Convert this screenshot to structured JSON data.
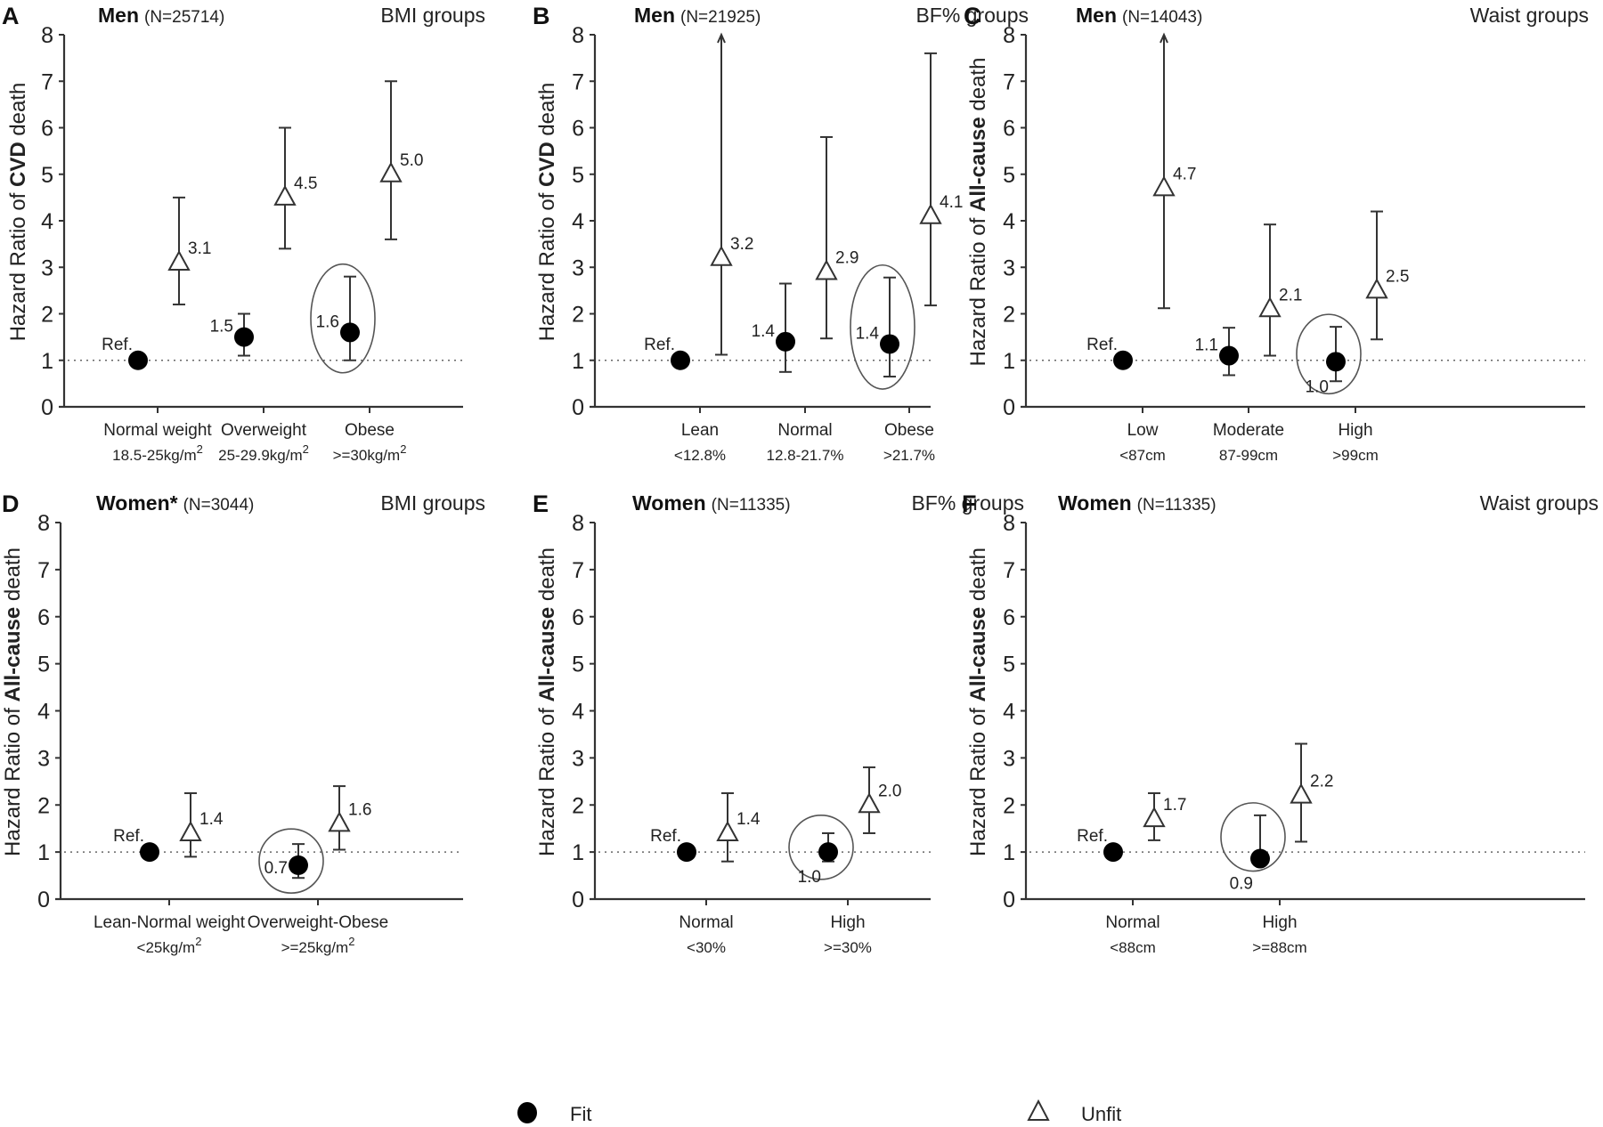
{
  "chart_data": [
    {
      "type": "scatter",
      "panel": "A",
      "title_sex": "Men",
      "title_n": "(N=25714)",
      "title_group": "BMI groups",
      "ylabel_prefix": "Hazard Ratio of ",
      "ylabel_bold": "CVD",
      "ylabel_suffix": " death",
      "ylim": [
        0,
        8
      ],
      "yticks": [
        0,
        1,
        2,
        3,
        4,
        5,
        6,
        7,
        8
      ],
      "reference_line": 1,
      "categories": [
        {
          "label": "Normal weight",
          "sub": "18.5-25kg/m",
          "sup": "2"
        },
        {
          "label": "Overweight",
          "sub": "25-29.9kg/m",
          "sup": "2"
        },
        {
          "label": "Obese",
          "sub": ">=30kg/m",
          "sup": "2"
        }
      ],
      "series": [
        {
          "name": "Fit",
          "marker": "circle",
          "points": [
            {
              "cat": 0,
              "value": 1.0,
              "lo": null,
              "hi": null,
              "label": "Ref."
            },
            {
              "cat": 1,
              "value": 1.5,
              "lo": 1.1,
              "hi": 2.0,
              "label": "1.5"
            },
            {
              "cat": 2,
              "value": 1.6,
              "lo": 1.0,
              "hi": 2.8,
              "label": "1.6",
              "highlight": true
            }
          ]
        },
        {
          "name": "Unfit",
          "marker": "triangle",
          "points": [
            {
              "cat": 0,
              "value": 3.1,
              "lo": 2.2,
              "hi": 4.5,
              "label": "3.1"
            },
            {
              "cat": 1,
              "value": 4.5,
              "lo": 3.4,
              "hi": 6.0,
              "label": "4.5"
            },
            {
              "cat": 2,
              "value": 5.0,
              "lo": 3.6,
              "hi": 7.0,
              "label": "5.0"
            }
          ]
        }
      ]
    },
    {
      "type": "scatter",
      "panel": "B",
      "title_sex": "Men",
      "title_n": "(N=21925)",
      "title_group": "BF% groups",
      "ylabel_prefix": "Hazard Ratio of ",
      "ylabel_bold": "CVD",
      "ylabel_suffix": " death",
      "ylim": [
        0,
        8
      ],
      "yticks": [
        0,
        1,
        2,
        3,
        4,
        5,
        6,
        7,
        8
      ],
      "reference_line": 1,
      "categories": [
        {
          "label": "Lean",
          "sub": "<12.8%",
          "sup": ""
        },
        {
          "label": "Normal",
          "sub": "12.8-21.7%",
          "sup": ""
        },
        {
          "label": "Obese",
          "sub": ">21.7%",
          "sup": ""
        }
      ],
      "series": [
        {
          "name": "Fit",
          "marker": "circle",
          "points": [
            {
              "cat": 0,
              "value": 1.0,
              "lo": null,
              "hi": null,
              "label": "Ref."
            },
            {
              "cat": 1,
              "value": 1.4,
              "lo": 0.75,
              "hi": 2.65,
              "label": "1.4"
            },
            {
              "cat": 2,
              "value": 1.35,
              "lo": 0.65,
              "hi": 2.78,
              "label": "1.4",
              "highlight": true
            }
          ]
        },
        {
          "name": "Unfit",
          "marker": "triangle",
          "points": [
            {
              "cat": 0,
              "value": 3.2,
              "lo": 1.12,
              "hi": 8.0,
              "label": "3.2",
              "arrow": true
            },
            {
              "cat": 1,
              "value": 2.9,
              "lo": 1.47,
              "hi": 5.8,
              "label": "2.9"
            },
            {
              "cat": 2,
              "value": 4.1,
              "lo": 2.18,
              "hi": 7.6,
              "label": "4.1"
            }
          ]
        }
      ]
    },
    {
      "type": "scatter",
      "panel": "C",
      "title_sex": "Men",
      "title_n": "(N=14043)",
      "title_group": "Waist groups",
      "ylabel_prefix": "Hazard Ratio of ",
      "ylabel_bold": "All-cause",
      "ylabel_suffix": " death",
      "ylim": [
        0,
        8
      ],
      "yticks": [
        0,
        1,
        2,
        3,
        4,
        5,
        6,
        7,
        8
      ],
      "reference_line": 1,
      "categories": [
        {
          "label": "Low",
          "sub": "<87cm",
          "sup": ""
        },
        {
          "label": "Moderate",
          "sub": "87-99cm",
          "sup": ""
        },
        {
          "label": "High",
          "sub": ">99cm",
          "sup": ""
        }
      ],
      "series": [
        {
          "name": "Fit",
          "marker": "circle",
          "points": [
            {
              "cat": 0,
              "value": 1.0,
              "lo": null,
              "hi": null,
              "label": "Ref."
            },
            {
              "cat": 1,
              "value": 1.1,
              "lo": 0.68,
              "hi": 1.7,
              "label": "1.1"
            },
            {
              "cat": 2,
              "value": 0.97,
              "lo": 0.55,
              "hi": 1.72,
              "label": "1.0",
              "highlight": true
            }
          ]
        },
        {
          "name": "Unfit",
          "marker": "triangle",
          "points": [
            {
              "cat": 0,
              "value": 4.7,
              "lo": 2.12,
              "hi": 8.0,
              "label": "4.7",
              "arrow": true
            },
            {
              "cat": 1,
              "value": 2.1,
              "lo": 1.1,
              "hi": 3.92,
              "label": "2.1"
            },
            {
              "cat": 2,
              "value": 2.5,
              "lo": 1.45,
              "hi": 4.2,
              "label": "2.5"
            }
          ]
        }
      ]
    },
    {
      "type": "scatter",
      "panel": "D",
      "title_sex": "Women*",
      "title_n": "(N=3044)",
      "title_group": "BMI groups",
      "ylabel_prefix": "Hazard Ratio of ",
      "ylabel_bold": "All-cause",
      "ylabel_suffix": " death",
      "ylim": [
        0,
        8
      ],
      "yticks": [
        0,
        1,
        2,
        3,
        4,
        5,
        6,
        7,
        8
      ],
      "reference_line": 1,
      "categories": [
        {
          "label": "Lean-Normal weight",
          "sub": "<25kg/m",
          "sup": "2"
        },
        {
          "label": "Overweight-Obese",
          "sub": ">=25kg/m",
          "sup": "2"
        }
      ],
      "series": [
        {
          "name": "Fit",
          "marker": "circle",
          "points": [
            {
              "cat": 0,
              "value": 1.0,
              "lo": null,
              "hi": null,
              "label": "Ref."
            },
            {
              "cat": 1,
              "value": 0.72,
              "lo": 0.45,
              "hi": 1.17,
              "label": "0.7",
              "highlight": true
            }
          ]
        },
        {
          "name": "Unfit",
          "marker": "triangle",
          "points": [
            {
              "cat": 0,
              "value": 1.4,
              "lo": 0.9,
              "hi": 2.25,
              "label": "1.4"
            },
            {
              "cat": 1,
              "value": 1.6,
              "lo": 1.05,
              "hi": 2.4,
              "label": "1.6"
            }
          ]
        }
      ]
    },
    {
      "type": "scatter",
      "panel": "E",
      "title_sex": "Women",
      "title_n": "(N=11335)",
      "title_group": "BF% groups",
      "ylabel_prefix": "Hazard Ratio of ",
      "ylabel_bold": "All-cause",
      "ylabel_suffix": " death",
      "ylim": [
        0,
        8
      ],
      "yticks": [
        0,
        1,
        2,
        3,
        4,
        5,
        6,
        7,
        8
      ],
      "reference_line": 1,
      "categories": [
        {
          "label": "Normal",
          "sub": "<30%",
          "sup": ""
        },
        {
          "label": "High",
          "sub": ">=30%",
          "sup": ""
        }
      ],
      "series": [
        {
          "name": "Fit",
          "marker": "circle",
          "points": [
            {
              "cat": 0,
              "value": 1.0,
              "lo": null,
              "hi": null,
              "label": "Ref."
            },
            {
              "cat": 1,
              "value": 1.0,
              "lo": 0.8,
              "hi": 1.4,
              "label": "1.0",
              "highlight": true
            }
          ]
        },
        {
          "name": "Unfit",
          "marker": "triangle",
          "points": [
            {
              "cat": 0,
              "value": 1.4,
              "lo": 0.8,
              "hi": 2.25,
              "label": "1.4"
            },
            {
              "cat": 1,
              "value": 2.0,
              "lo": 1.4,
              "hi": 2.8,
              "label": "2.0"
            }
          ]
        }
      ]
    },
    {
      "type": "scatter",
      "panel": "F",
      "title_sex": "Women",
      "title_n": "(N=11335)",
      "title_group": "Waist groups",
      "ylabel_prefix": "Hazard Ratio of ",
      "ylabel_bold": "All-cause",
      "ylabel_suffix": " death",
      "ylim": [
        0,
        8
      ],
      "yticks": [
        0,
        1,
        2,
        3,
        4,
        5,
        6,
        7,
        8
      ],
      "reference_line": 1,
      "categories": [
        {
          "label": "Normal",
          "sub": "<88cm",
          "sup": ""
        },
        {
          "label": "High",
          "sub": ">=88cm",
          "sup": ""
        }
      ],
      "series": [
        {
          "name": "Fit",
          "marker": "circle",
          "points": [
            {
              "cat": 0,
              "value": 1.0,
              "lo": null,
              "hi": null,
              "label": "Ref."
            },
            {
              "cat": 1,
              "value": 0.86,
              "lo": 0.86,
              "hi": 1.78,
              "label": "0.9",
              "highlight": true
            }
          ]
        },
        {
          "name": "Unfit",
          "marker": "triangle",
          "points": [
            {
              "cat": 0,
              "value": 1.7,
              "lo": 1.25,
              "hi": 2.25,
              "label": "1.7"
            },
            {
              "cat": 1,
              "value": 2.2,
              "lo": 1.22,
              "hi": 3.3,
              "label": "2.2"
            }
          ]
        }
      ]
    }
  ],
  "legend": {
    "position": "bottom",
    "items": [
      {
        "name": "Fit",
        "marker": "circle"
      },
      {
        "name": "Unfit",
        "marker": "triangle"
      }
    ]
  }
}
